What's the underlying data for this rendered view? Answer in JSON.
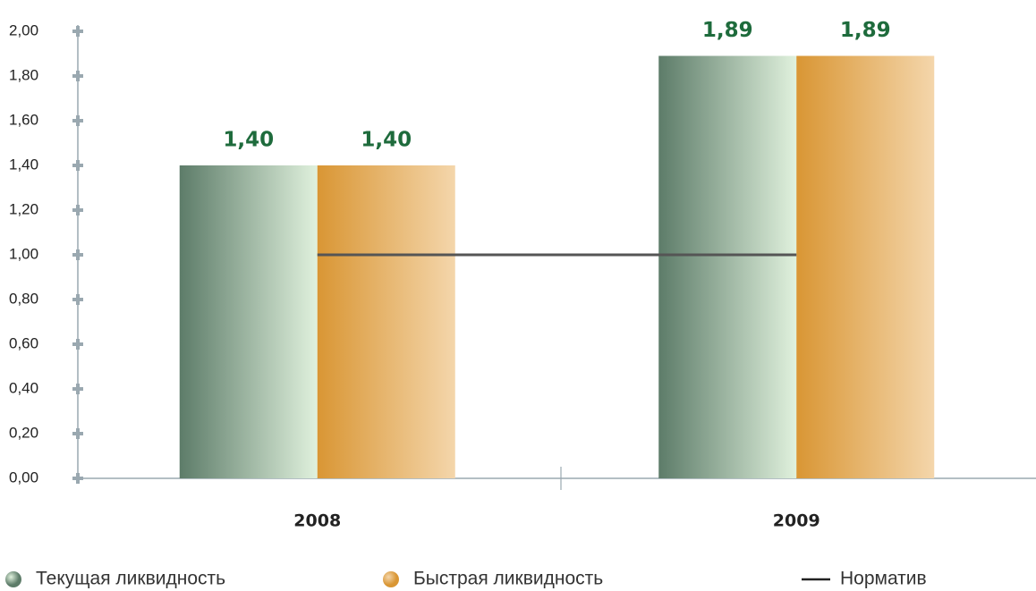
{
  "chart_data": {
    "type": "bar",
    "categories": [
      "2008",
      "2009"
    ],
    "series": [
      {
        "name": "Текущая ликвидность",
        "color": [
          "#5d7c69",
          "#e0f1dd"
        ],
        "values": [
          1.4,
          1.89
        ],
        "value_labels": [
          "1,40",
          "1,89"
        ]
      },
      {
        "name": "Быстрая ликвидность",
        "color": [
          "#d99634",
          "#f4d6ab"
        ],
        "values": [
          1.4,
          1.89
        ],
        "value_labels": [
          "1,40",
          "1,89"
        ]
      },
      {
        "name": "Норматив",
        "type": "line",
        "color": "#555555",
        "values": [
          1.0,
          1.0
        ]
      }
    ],
    "ylim": [
      0,
      2
    ],
    "yticks": [
      {
        "value": 0,
        "label": "0,00"
      },
      {
        "value": 0.2,
        "label": "0,20"
      },
      {
        "value": 0.4,
        "label": "0,40"
      },
      {
        "value": 0.6,
        "label": "0,60"
      },
      {
        "value": 0.8,
        "label": "0,80"
      },
      {
        "value": 1.0,
        "label": "1,00"
      },
      {
        "value": 1.2,
        "label": "1,20"
      },
      {
        "value": 1.4,
        "label": "1,40"
      },
      {
        "value": 1.6,
        "label": "1,60"
      },
      {
        "value": 1.8,
        "label": "1,80"
      },
      {
        "value": 2.0,
        "label": "2,00"
      }
    ]
  }
}
